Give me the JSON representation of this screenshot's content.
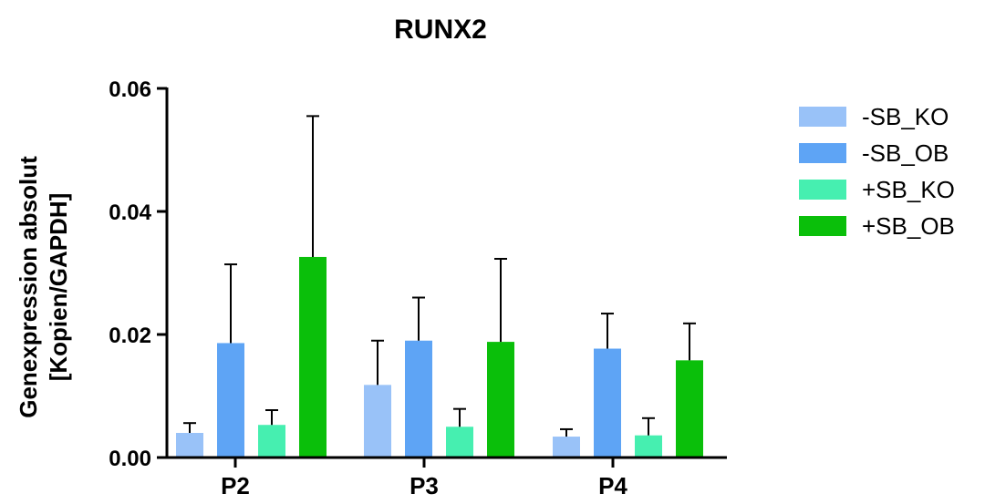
{
  "chart_data": {
    "type": "bar",
    "title": "RUNX2",
    "ylabel_lines": [
      "Genexpression absolut",
      "[Kopien/GAPDH]"
    ],
    "xlabel": "",
    "categories": [
      "P2",
      "P3",
      "P4"
    ],
    "ylim": [
      0,
      0.06
    ],
    "yticks": [
      0,
      0.02,
      0.04,
      0.06
    ],
    "ytick_labels": [
      "0.00",
      "0.02",
      "0.04",
      "0.06"
    ],
    "grid": false,
    "legend_position": "right",
    "series": [
      {
        "name": "-SB_KO",
        "color": "#99c2f8",
        "values": [
          0.004,
          0.0118,
          0.0034
        ],
        "errors": [
          0.0016,
          0.0072,
          0.0012
        ]
      },
      {
        "name": "-SB_OB",
        "color": "#5ea4f5",
        "values": [
          0.0186,
          0.019,
          0.0177
        ],
        "errors": [
          0.0128,
          0.007,
          0.0057
        ]
      },
      {
        "name": "+SB_KO",
        "color": "#46efb0",
        "values": [
          0.0053,
          0.005,
          0.0036
        ],
        "errors": [
          0.0024,
          0.0029,
          0.0028
        ]
      },
      {
        "name": "+SB_OB",
        "color": "#0abf0a",
        "values": [
          0.0326,
          0.0188,
          0.0158
        ],
        "errors": [
          0.0229,
          0.0135,
          0.006
        ]
      }
    ]
  }
}
